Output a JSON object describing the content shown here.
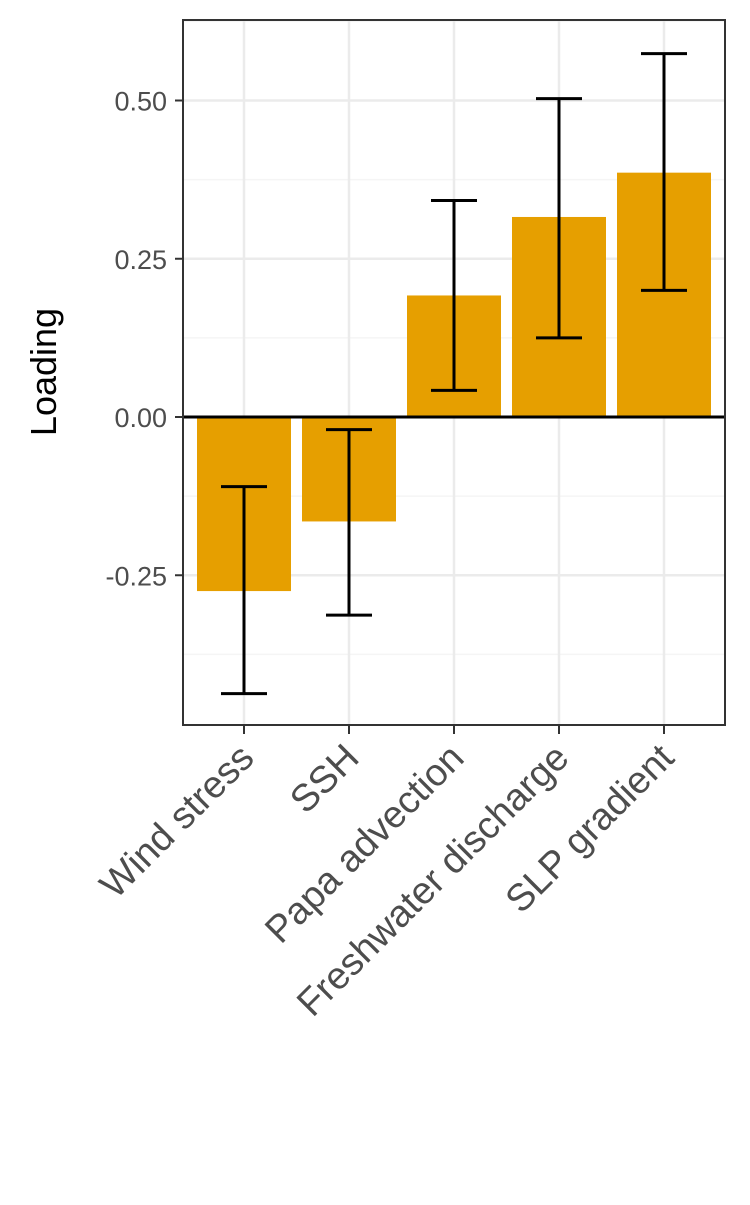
{
  "chart_data": {
    "type": "bar",
    "title": "",
    "xlabel": "",
    "ylabel": "Loading",
    "categories": [
      "Wind stress",
      "SSH",
      "Papa advection",
      "Freshwater discharge",
      "SLP gradient"
    ],
    "series": [
      {
        "values": [
          -0.275,
          -0.165,
          0.192,
          0.316,
          0.386
        ],
        "error_lower": [
          -0.437,
          -0.313,
          0.042,
          0.125,
          0.2
        ],
        "error_upper": [
          -0.11,
          -0.02,
          0.342,
          0.503,
          0.574
        ]
      }
    ],
    "yticks": [
      -0.25,
      0.0,
      0.25,
      0.5
    ],
    "ytick_labels": [
      "-0.25",
      "0.00",
      "0.25",
      "0.50"
    ],
    "ylim": [
      -0.487,
      0.625
    ],
    "grid": true,
    "zero_line": true,
    "legend": "none",
    "colors": {
      "bar": "#E69F00",
      "errorbar": "#000000",
      "grid_major": "#ebebeb",
      "grid_minor": "#f5f5f5",
      "panel_border": "#333333",
      "tick_text": "#4d4d4d"
    }
  }
}
